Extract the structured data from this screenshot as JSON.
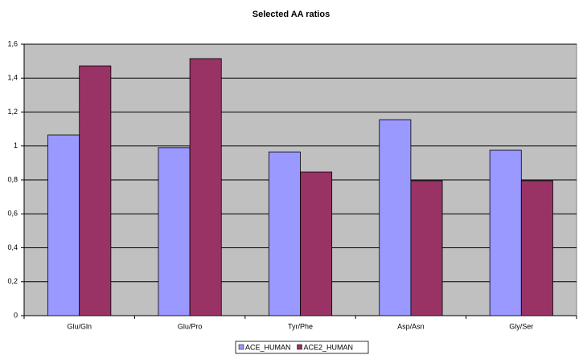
{
  "chart_data": {
    "type": "bar",
    "title": "Selected AA ratios",
    "categories": [
      "Glu/Gln",
      "Glu/Pro",
      "Tyr/Phe",
      "Asp/Asn",
      "Gly/Ser"
    ],
    "series": [
      {
        "name": "ACE_HUMAN",
        "color": "#9999ff",
        "values": [
          1.065,
          0.99,
          0.965,
          1.155,
          0.975
        ]
      },
      {
        "name": "ACE2_HUMAN",
        "color": "#993366",
        "values": [
          1.472,
          1.515,
          0.847,
          0.795,
          0.795
        ]
      }
    ],
    "ylim": [
      0,
      1.6
    ],
    "yticks": [
      0,
      {
        "value": 0.2,
        "label": "0,2"
      },
      {
        "value": 0.4,
        "label": "0,4"
      },
      {
        "value": 0.6,
        "label": "0,6"
      },
      {
        "value": 0.8,
        "label": "0,8"
      },
      1,
      {
        "value": 1.2,
        "label": "1,2"
      },
      {
        "value": 1.4,
        "label": "1,4"
      },
      {
        "value": 1.6,
        "label": "1,6"
      }
    ],
    "grid": true,
    "legend": "bottom",
    "plot_background": "#c0c0c0"
  }
}
